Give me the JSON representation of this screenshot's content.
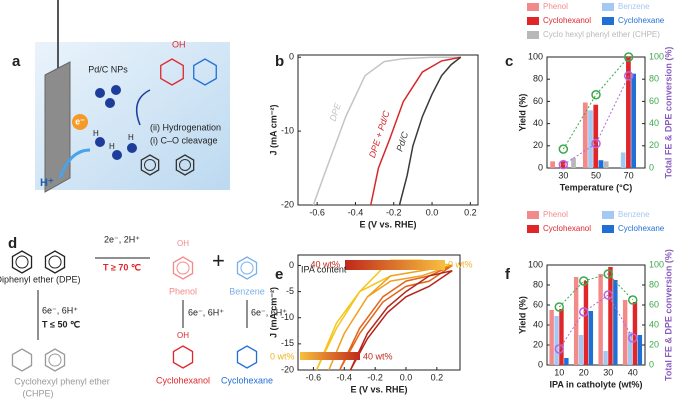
{
  "figure_a": {
    "label": "a",
    "catalyst": "Pd/C NPs",
    "oh": "OH",
    "step_ii": "(ii) Hydrogenation",
    "step_i": "(i) C–O cleavage",
    "electron": "e⁻",
    "hydrogen": [
      "H",
      "H",
      "H"
    ],
    "proton": "H⁺"
  },
  "figure_d": {
    "label": "d",
    "dpe": "Diphenyl ether (DPE)",
    "cleave_cond": "2e⁻, 2H⁺",
    "cleave_temp": "T ≥ 70 ℃",
    "phenol": "Phenol",
    "benzene": "Benzene",
    "left_cond": "6e⁻, 6H⁺",
    "left_temp": "T ≤ 50 ℃",
    "chpe": "Cyclohexyl phenyl ether",
    "chpe_abbr": "(CHPE)",
    "phenol_cond": "6e⁻, 6H⁺",
    "benzene_cond": "6e⁻, 6H⁺",
    "cyclohexanol": "Cyclohexanol",
    "cyclohexane": "Cyclohexane",
    "oh_phenol": "OH",
    "oh_cyclohexanol": "OH"
  },
  "chart_data": [
    {
      "label": "b",
      "type": "line",
      "xlabel": "E (V vs. RHE)",
      "ylabel": "J (mA cm⁻²)",
      "xlim": [
        -0.7,
        0.24
      ],
      "xticks": [
        -0.6,
        -0.4,
        -0.2,
        {
          "value": 0,
          "label": "0.0"
        },
        0.2
      ],
      "ylim": [
        -20,
        0.3
      ],
      "yticks": [
        -20,
        -10,
        0
      ],
      "series": [
        {
          "name": "DPE",
          "color": "#c4c4c4",
          "x": [
            -0.62,
            -0.55,
            -0.45,
            -0.35,
            -0.25,
            -0.15,
            0,
            0.15
          ],
          "values": [
            -20,
            -15,
            -8,
            -2.5,
            -0.6,
            -0.2,
            0,
            0
          ]
        },
        {
          "name": "DPE + Pd/C",
          "color": "#d62728",
          "x": [
            -0.32,
            -0.28,
            -0.22,
            -0.15,
            -0.05,
            0.05,
            0.15
          ],
          "values": [
            -20,
            -15,
            -11,
            -6,
            -2,
            -0.5,
            0
          ]
        },
        {
          "name": "Pd/C",
          "color": "#3a3a3a",
          "x": [
            -0.17,
            -0.13,
            -0.1,
            -0.05,
            0,
            0.05,
            0.1,
            0.15
          ],
          "values": [
            -20,
            -16,
            -12,
            -8,
            -5,
            -2.5,
            -1,
            0
          ]
        }
      ]
    },
    {
      "label": "c",
      "type": "bar",
      "categories": [
        "30",
        "50",
        "70"
      ],
      "xlabel": "Temperature (°C)",
      "ylabel": "Yield (%)",
      "y2label": "Total FE & DPE conversion (%)",
      "ylim": [
        0,
        100
      ],
      "yticks": [
        0,
        20,
        40,
        60,
        80,
        100
      ],
      "y2lim": [
        0,
        100
      ],
      "y2ticks": [
        0,
        20,
        40,
        60,
        80,
        100
      ],
      "series": [
        {
          "name": "Phenol",
          "color": "#f28a8a",
          "values": [
            6,
            59,
            0
          ]
        },
        {
          "name": "Benzene",
          "color": "#a3c8f2",
          "values": [
            0,
            52,
            14
          ]
        },
        {
          "name": "Cyclohexanol",
          "color": "#e0262b",
          "values": [
            6,
            57,
            100
          ]
        },
        {
          "name": "Cyclohexane",
          "color": "#1f6fd6",
          "values": [
            0,
            7,
            85
          ]
        },
        {
          "name": "Cyclo hexyl phenyl ether (CHPE)",
          "color": "#b8b8b8",
          "values": [
            9,
            6,
            0
          ]
        },
        {
          "color": "#b566e0",
          "axis": "y2",
          "type": "line",
          "values": [
            3,
            22,
            83
          ]
        },
        {
          "color": "#3aa84a",
          "axis": "y2",
          "type": "line",
          "values": [
            17,
            66,
            100
          ]
        }
      ]
    },
    {
      "label": "e",
      "type": "line",
      "xlabel": "E (V vs. RHE)",
      "ylabel": "J (mA cm⁻²)",
      "xlim": [
        -0.7,
        0.35
      ],
      "xticks": [
        -0.6,
        -0.4,
        -0.2,
        {
          "value": 0,
          "label": "0.0"
        },
        0.2
      ],
      "ylim": [
        -20,
        2
      ],
      "yticks": [
        -20,
        -15,
        -10,
        -5,
        0
      ],
      "annotations": [
        "IPA content",
        "40 wt%",
        "0 wt%",
        "0 wt%",
        "40 wt%"
      ],
      "series": [
        {
          "color": "#f5c518",
          "x": [
            0.3,
            0.1,
            -0.1,
            -0.3,
            -0.45,
            -0.58,
            -0.45,
            -0.3,
            -0.1,
            0.1,
            0.3
          ],
          "values": [
            0,
            -1,
            -2,
            -5,
            -11,
            -20,
            -12,
            -5,
            1,
            1,
            0
          ]
        },
        {
          "color": "#f0a020",
          "x": [
            0.3,
            0.1,
            -0.1,
            -0.25,
            -0.4,
            -0.5,
            -0.4,
            -0.25,
            -0.1,
            0.1,
            0.3
          ],
          "values": [
            0,
            -2,
            -3,
            -6,
            -13,
            -20,
            -13,
            -6,
            -2,
            -1,
            0
          ]
        },
        {
          "color": "#e2661a",
          "x": [
            0.3,
            0.15,
            0,
            -0.15,
            -0.3,
            -0.43,
            -0.3,
            -0.15,
            0,
            0.15,
            0.3
          ],
          "values": [
            0,
            -3,
            -4,
            -7,
            -13,
            -20,
            -12,
            -6,
            -3,
            -2,
            0
          ]
        },
        {
          "color": "#b3261a",
          "x": [
            0.3,
            0.15,
            0,
            -0.12,
            -0.25,
            -0.36,
            -0.25,
            -0.12,
            0,
            0.15,
            0.3
          ],
          "values": [
            -1,
            -4,
            -6,
            -9,
            -14,
            -20,
            -13,
            -8,
            -5,
            -2,
            -1
          ]
        }
      ]
    },
    {
      "label": "f",
      "type": "bar",
      "categories": [
        "10",
        "20",
        "30",
        "40"
      ],
      "xlabel": "IPA in catholyte (wt%)",
      "ylabel": "Yield (%)",
      "y2label": "Total FE & DPE conversion (%)",
      "ylim": [
        0,
        100
      ],
      "yticks": [
        0,
        20,
        40,
        60,
        80,
        100
      ],
      "y2lim": [
        0,
        100
      ],
      "y2ticks": [
        0,
        20,
        40,
        60,
        80,
        100
      ],
      "series": [
        {
          "name": "Phenol",
          "color": "#f28a8a",
          "values": [
            55,
            88,
            91,
            65
          ]
        },
        {
          "name": "Benzene",
          "color": "#a3c8f2",
          "values": [
            49,
            30,
            14,
            33
          ]
        },
        {
          "name": "Cyclohexanol",
          "color": "#e0262b",
          "values": [
            56,
            84,
            98,
            63
          ]
        },
        {
          "name": "Cyclohexane",
          "color": "#1f6fd6",
          "values": [
            7,
            54,
            85,
            30
          ]
        },
        {
          "color": "#b566e0",
          "axis": "y2",
          "type": "line",
          "values": [
            16,
            53,
            70,
            27
          ]
        },
        {
          "color": "#3aa84a",
          "axis": "y2",
          "type": "line",
          "values": [
            58,
            84,
            91,
            65
          ]
        }
      ]
    }
  ]
}
